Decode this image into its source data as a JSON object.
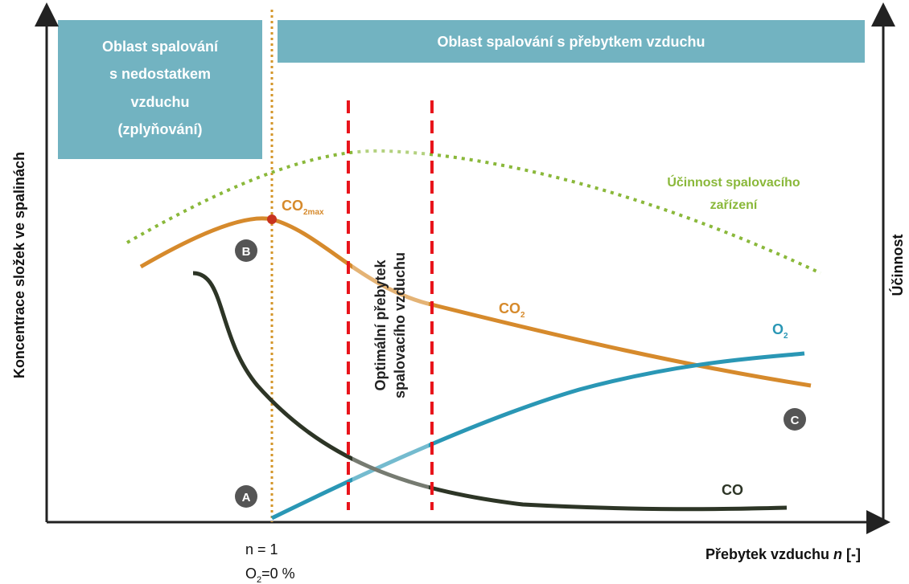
{
  "regions": {
    "deficit": [
      "Oblast spalování",
      "s nedostatkem",
      "vzduchu",
      "(zplyňování)"
    ],
    "excess": "Oblast spalování s přebytkem vzduchu"
  },
  "optimum": [
    "Optimální přebytek",
    "spalovacího vzduchu"
  ],
  "efficiency": [
    "Účinnost spalovacího",
    "zařízení"
  ],
  "curves": {
    "co2max": {
      "main": "CO",
      "sub": "2max"
    },
    "co2": {
      "main": "CO",
      "sub": "2"
    },
    "o2": {
      "main": "O",
      "sub": "2"
    },
    "co": "CO"
  },
  "points": [
    "A",
    "B",
    "C"
  ],
  "axes": {
    "y_left": "Koncentrace složek ve spalinách",
    "y_right": "Účinnost",
    "x": {
      "text": "Přebytek vzduchu ",
      "italic": "n",
      "tail": " [-]"
    },
    "n1": "n = 1",
    "o2zero": {
      "main": "O",
      "sub": "2",
      "tail": "=0 %"
    }
  }
}
